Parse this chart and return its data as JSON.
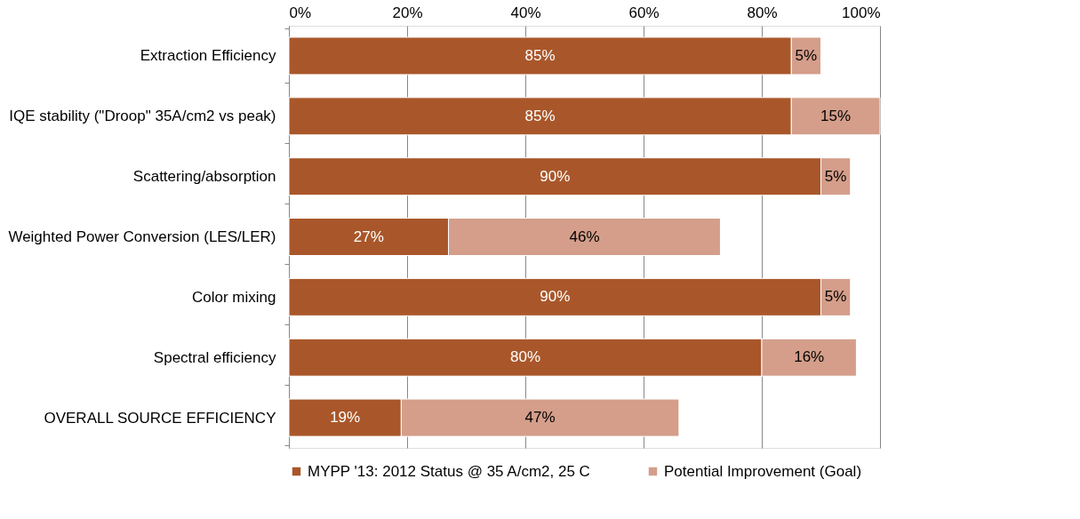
{
  "chart_data": {
    "type": "bar",
    "orientation": "horizontal",
    "stacked": true,
    "categories": [
      "Extraction Efficiency",
      "IQE stability (\"Droop\" 35A/cm2  vs peak)",
      "Scattering/absorption",
      "Weighted Power Conversion (LES/LER)",
      "Color mixing",
      "Spectral efficiency",
      "OVERALL SOURCE EFFICIENCY"
    ],
    "series": [
      {
        "name": "MYPP '13: 2012 Status @ 35 A/cm2, 25 C",
        "color": "#a9572a",
        "values": [
          85,
          85,
          90,
          27,
          90,
          80,
          19
        ],
        "value_labels": [
          "85%",
          "85%",
          "90%",
          "27%",
          "90%",
          "80%",
          "19%"
        ]
      },
      {
        "name": "Potential Improvement (Goal)",
        "color": "#d49e8a",
        "values": [
          5,
          15,
          5,
          46,
          5,
          16,
          47
        ],
        "value_labels": [
          "5%",
          "15%",
          "5%",
          "46%",
          "5%",
          "16%",
          "47%"
        ]
      }
    ],
    "xlim": [
      0,
      100
    ],
    "xticks": [
      {
        "value": 0,
        "label": "0%"
      },
      {
        "value": 20,
        "label": "20%"
      },
      {
        "value": 40,
        "label": "40%"
      },
      {
        "value": 60,
        "label": "60%"
      },
      {
        "value": 80,
        "label": "80%"
      },
      {
        "value": 100,
        "label": "100%"
      }
    ],
    "grid": "x",
    "legend": "bottom"
  }
}
